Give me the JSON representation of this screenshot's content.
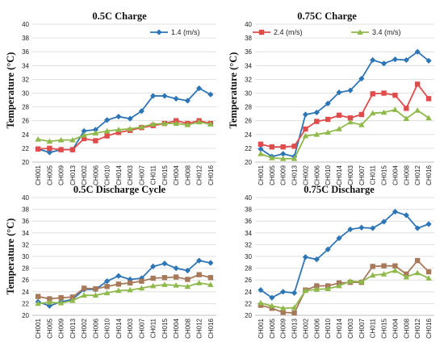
{
  "chart_data": [
    {
      "type": "line",
      "title": "0.5C Charge",
      "ylabel": "Temperature (°C)",
      "xlabel": "",
      "ylim": [
        20,
        40
      ],
      "yticks": [
        20,
        22,
        24,
        26,
        28,
        30,
        32,
        34,
        36,
        38,
        40
      ],
      "grid": true,
      "legend": "top-right",
      "categories": [
        "CH001",
        "CH005",
        "CH009",
        "CH013",
        "CH002",
        "CH006",
        "CH010",
        "CH014",
        "CH003",
        "CH007",
        "CH011",
        "CH015",
        "CH004",
        "CH008",
        "CH012",
        "CH016"
      ],
      "series": [
        {
          "name": "1.4 (m/s)",
          "color": "#2e75b6",
          "marker": "diamond",
          "values": [
            21.9,
            21.4,
            21.8,
            21.8,
            24.5,
            24.7,
            26.1,
            26.6,
            26.3,
            27.4,
            29.6,
            29.6,
            29.2,
            28.9,
            30.7,
            29.8
          ]
        },
        {
          "name": "2.4 (m/s)",
          "color": "#e04b4b",
          "marker": "square",
          "values": [
            21.9,
            22.0,
            21.8,
            21.8,
            23.4,
            23.1,
            23.8,
            24.3,
            24.6,
            25.0,
            25.3,
            25.6,
            26.0,
            25.6,
            26.0,
            25.6
          ]
        },
        {
          "name": "3.4 (m/s)",
          "color": "#8fb94b",
          "marker": "triangle",
          "values": [
            23.3,
            23.0,
            23.2,
            23.2,
            23.9,
            24.2,
            24.5,
            24.7,
            24.8,
            25.1,
            25.5,
            25.6,
            25.6,
            25.4,
            25.8,
            25.5
          ]
        }
      ]
    },
    {
      "type": "line",
      "title": "0.75C Charge",
      "ylabel": "Temperature (°C)",
      "xlabel": "",
      "ylim": [
        20,
        40
      ],
      "yticks": [
        20,
        22,
        24,
        26,
        28,
        30,
        32,
        34,
        36,
        38,
        40
      ],
      "grid": true,
      "categories": [
        "CH001",
        "CH005",
        "CH009",
        "CH013",
        "CH002",
        "CH006",
        "CH010",
        "CH014",
        "CH003",
        "CH007",
        "CH011",
        "CH015",
        "CH004",
        "CH008",
        "CH012",
        "CH016"
      ],
      "series": [
        {
          "name": "1.4 (m/s)",
          "color": "#2e75b6",
          "marker": "diamond",
          "values": [
            21.9,
            20.8,
            21.2,
            20.8,
            26.9,
            27.2,
            28.5,
            30.1,
            30.4,
            32.1,
            34.8,
            34.3,
            34.9,
            34.8,
            36.0,
            34.7
          ]
        },
        {
          "name": "2.4 (m/s)",
          "color": "#e04b4b",
          "marker": "square",
          "values": [
            22.6,
            22.2,
            22.2,
            22.3,
            24.8,
            25.9,
            26.2,
            26.8,
            26.4,
            26.9,
            29.9,
            30.0,
            29.7,
            27.8,
            31.3,
            29.2
          ]
        },
        {
          "name": "3.4 (m/s)",
          "color": "#8fb94b",
          "marker": "triangle",
          "values": [
            21.2,
            20.6,
            20.5,
            20.5,
            23.8,
            24.0,
            24.3,
            24.8,
            25.8,
            25.4,
            27.1,
            27.2,
            27.6,
            26.3,
            27.5,
            26.4
          ]
        }
      ]
    },
    {
      "type": "line",
      "title": "0.5C Discharge Cycle",
      "ylabel": "Temperature (°C)",
      "xlabel": "",
      "ylim": [
        20,
        40
      ],
      "yticks": [
        20,
        22,
        24,
        26,
        28,
        30,
        32,
        34,
        36,
        38,
        40
      ],
      "grid": true,
      "categories": [
        "CH001",
        "CH005",
        "CH009",
        "CH013",
        "CH002",
        "CH006",
        "CH010",
        "CH014",
        "CH003",
        "CH007",
        "CH011",
        "CH015",
        "CH004",
        "CH008",
        "CH012",
        "CH016"
      ],
      "series": [
        {
          "name": "1.4 (m/s)",
          "color": "#2e75b6",
          "marker": "diamond",
          "values": [
            22.3,
            21.6,
            22.3,
            22.7,
            24.4,
            24.4,
            25.8,
            26.7,
            26.1,
            26.3,
            28.3,
            28.8,
            28.0,
            27.6,
            29.3,
            28.9
          ]
        },
        {
          "name": "2.4 (m/s)",
          "color": "#a6795a",
          "marker": "square",
          "values": [
            23.2,
            22.8,
            23.0,
            23.1,
            24.6,
            24.5,
            24.9,
            25.3,
            25.5,
            25.8,
            26.3,
            26.4,
            26.5,
            26.1,
            26.9,
            26.4
          ]
        },
        {
          "name": "3.4 (m/s)",
          "color": "#8fb94b",
          "marker": "triangle",
          "values": [
            22.0,
            22.2,
            22.1,
            22.5,
            23.4,
            23.4,
            23.8,
            24.2,
            24.3,
            24.6,
            25.0,
            25.2,
            25.1,
            24.9,
            25.5,
            25.2
          ]
        }
      ]
    },
    {
      "type": "line",
      "title": "0.75C Discharge",
      "ylabel": "",
      "xlabel": "",
      "ylim": [
        20,
        40
      ],
      "yticks": [
        20,
        22,
        24,
        26,
        28,
        30,
        32,
        34,
        36,
        38,
        40
      ],
      "grid": true,
      "categories": [
        "CH001",
        "CH005",
        "CH009",
        "CH013",
        "CH002",
        "CH006",
        "CH010",
        "CH014",
        "CH003",
        "CH007",
        "CH011",
        "CH015",
        "CH004",
        "CH008",
        "CH012",
        "CH016"
      ],
      "series": [
        {
          "name": "1.4 (m/s)",
          "color": "#2e75b6",
          "marker": "diamond",
          "values": [
            24.3,
            23.0,
            24.0,
            23.8,
            29.9,
            29.5,
            31.2,
            33.1,
            34.6,
            34.9,
            34.8,
            35.9,
            37.6,
            37.0,
            34.8,
            35.5
          ]
        },
        {
          "name": "2.4 (m/s)",
          "color": "#a6795a",
          "marker": "square",
          "values": [
            21.7,
            21.2,
            20.5,
            20.4,
            24.3,
            25.0,
            25.0,
            25.5,
            25.6,
            25.6,
            28.3,
            28.4,
            28.4,
            27.0,
            29.3,
            27.4
          ]
        },
        {
          "name": "3.4 (m/s)",
          "color": "#8fb94b",
          "marker": "triangle",
          "values": [
            22.1,
            21.6,
            21.2,
            21.3,
            24.2,
            24.4,
            24.5,
            25.0,
            25.8,
            25.7,
            26.8,
            27.0,
            27.6,
            26.5,
            27.2,
            26.3
          ]
        }
      ]
    }
  ]
}
